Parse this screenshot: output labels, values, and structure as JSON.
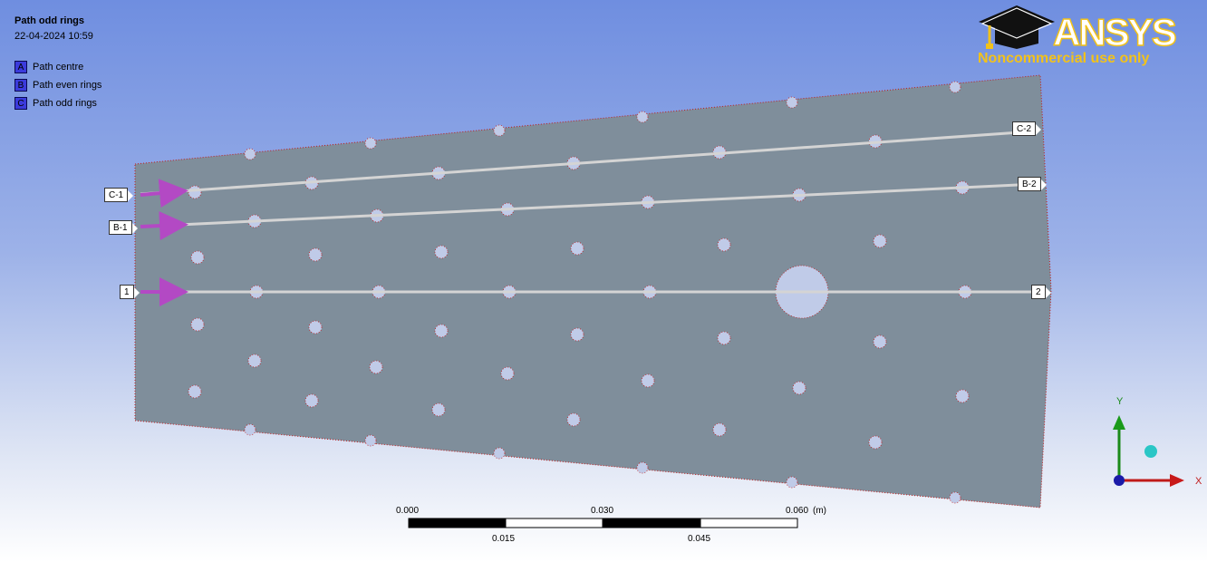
{
  "header": {
    "title": "Path odd rings",
    "datetime": "22-04-2024 10:59"
  },
  "legend": [
    {
      "letter": "A",
      "label": "Path centre"
    },
    {
      "letter": "B",
      "label": "Path even rings"
    },
    {
      "letter": "C",
      "label": "Path odd rings"
    }
  ],
  "branding": {
    "logo_text": "ANSYS",
    "notice": "Noncommercial use only",
    "accent": "#f2c21a"
  },
  "path_tags": {
    "c_start": "C-1",
    "c_end": "C-2",
    "b_start": "B-1",
    "b_end": "B-2",
    "centre_start": "1",
    "centre_end": "2"
  },
  "scale_bar": {
    "top_labels": [
      "0.000",
      "0.030",
      "0.060"
    ],
    "unit": "(m)",
    "bottom_labels": [
      "0.015",
      "0.045"
    ]
  },
  "triad": {
    "x": "X",
    "y": "Y"
  },
  "colors": {
    "plate": "#7f8e9b",
    "hole": "#c0cbe8",
    "path_line": "#d4d4d4",
    "probe_arrow": "#b349c4"
  }
}
